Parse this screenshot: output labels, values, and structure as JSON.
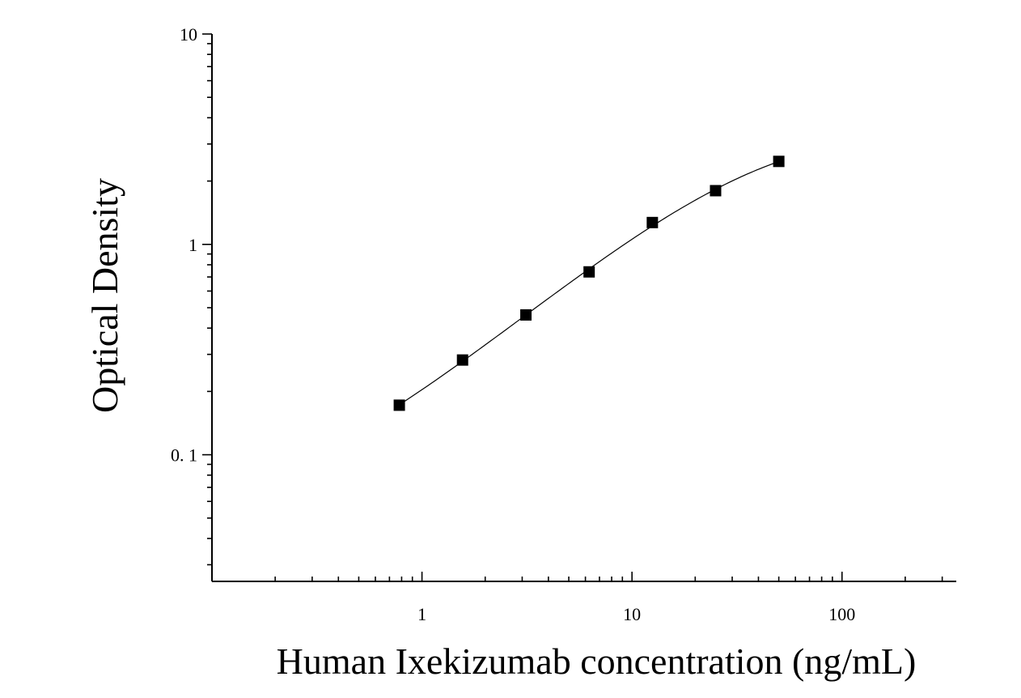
{
  "chart_data": {
    "type": "scatter",
    "title": "",
    "xlabel": "Human Ixekizumab concentration (ng/mL)",
    "ylabel": "Optical Density",
    "x_scale": "log",
    "y_scale": "log",
    "xlim": [
      0.1,
      350
    ],
    "ylim": [
      0.025,
      10
    ],
    "x_ticks": [
      {
        "value": 1,
        "label": "1"
      },
      {
        "value": 10,
        "label": "10"
      },
      {
        "value": 100,
        "label": "100"
      }
    ],
    "y_ticks": [
      {
        "value": 0.1,
        "label": "0. 1"
      },
      {
        "value": 1,
        "label": "1"
      },
      {
        "value": 10,
        "label": "10"
      }
    ],
    "grid": false,
    "legend": "none",
    "marker": "square",
    "color": "#000000",
    "fit_curve": true,
    "series": [
      {
        "x": [
          0.78,
          1.56,
          3.125,
          6.25,
          12.5,
          25,
          50
        ],
        "y": [
          0.172,
          0.282,
          0.462,
          0.74,
          1.27,
          1.8,
          2.48
        ]
      }
    ]
  }
}
